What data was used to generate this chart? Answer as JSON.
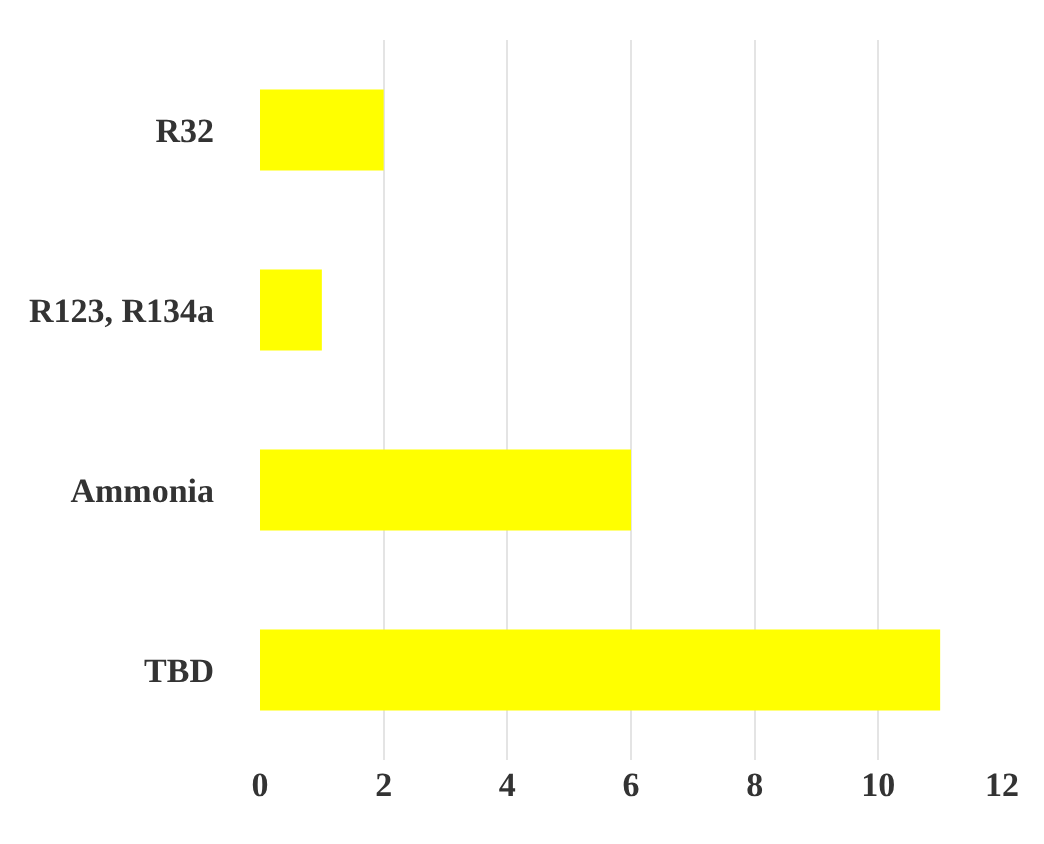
{
  "chart_data": {
    "type": "bar",
    "orientation": "horizontal",
    "categories": [
      "R32",
      "R123, R134a",
      "Ammonia",
      "TBD"
    ],
    "values": [
      2,
      1,
      6,
      11
    ],
    "color": "#ffff00",
    "xlim": [
      0,
      12
    ],
    "xticks": [
      0,
      2,
      4,
      6,
      8,
      10,
      12
    ],
    "grid": "x"
  }
}
